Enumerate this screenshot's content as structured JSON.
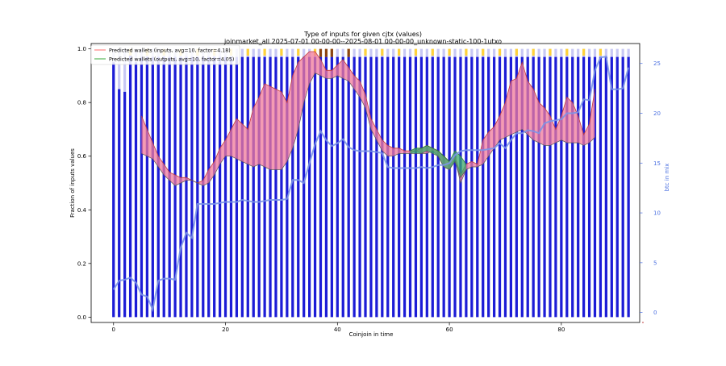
{
  "chart_data": {
    "type": "bar",
    "title": "Type of inputs for given cjtx (values)",
    "subtitle": "joinmarket_all 2025-07-01 00-00-00--2025-08-01 00-00-00_unknown-static-100-1utxo",
    "xlabel": "Coinjoin in time",
    "ylabel": "Fraction of inputs values",
    "y2label": "btc in mix",
    "xlim": [
      -4,
      94
    ],
    "ylim": [
      -0.02,
      1.02
    ],
    "y2lim": [
      -1,
      27
    ],
    "xticks": [
      "0",
      "20",
      "40",
      "60",
      "80"
    ],
    "xtick_values": [
      0,
      20,
      40,
      60,
      80
    ],
    "yticks": [
      "0.0",
      "0.2",
      "0.4",
      "0.6",
      "0.8",
      "1.0"
    ],
    "ytick_values": [
      0,
      0.2,
      0.4,
      0.6,
      0.8,
      1.0
    ],
    "y2ticks": [
      "0",
      "5",
      "10",
      "15",
      "20",
      "25"
    ],
    "y2tick_values": [
      0,
      5,
      10,
      15,
      20,
      25
    ],
    "grid": false,
    "legend_position": "top-left",
    "legend": [
      {
        "label": "Predicted wallets (inputs, avg=10, factor=4.18)",
        "color": "#ff6b6b"
      },
      {
        "label": "Predicted wallets (outputs, avg=10, factor=4.05)",
        "color": "#3aaa3a"
      }
    ],
    "colors": {
      "bars_dark": "#1c1cd6",
      "bars_light": "#c8c8f4",
      "bars_yellow": "#ffd23a",
      "bars_brown": "#8b4513",
      "inputs_fill": "#f07a9a",
      "inputs_line": "#c23b3b",
      "outputs_fill": "#3aaa6a",
      "btc_line": "#7b95e8",
      "right_axis": "#4a6fe0"
    },
    "bars_x_range": [
      0,
      92
    ],
    "bar_dark_fraction": [
      0.95,
      0.85,
      0.84,
      0.98,
      0.95,
      0.97,
      0.97,
      0.97,
      0.97,
      0.97,
      0.97,
      0.97,
      0.97,
      0.97,
      0.97,
      0.97,
      0.97,
      0.97,
      0.97,
      0.97,
      0.97,
      0.97,
      0.97,
      0.97,
      0.97,
      0.97,
      0.97,
      0.97,
      0.97,
      0.97,
      0.97,
      0.97,
      0.97,
      0.97,
      0.97,
      0.97,
      0.97,
      0.97,
      0.97,
      0.97,
      0.97,
      0.97,
      0.97,
      0.97,
      0.97,
      0.97,
      0.97,
      0.97,
      0.97,
      0.97,
      0.97,
      0.97,
      0.97,
      0.97,
      0.97,
      0.97,
      0.97,
      0.97,
      0.97,
      0.97,
      0.97,
      0.97,
      0.97,
      0.97,
      0.97,
      0.97,
      0.97,
      0.97,
      0.97,
      0.97,
      0.97,
      0.97,
      0.97,
      0.97,
      0.97,
      0.97,
      0.97,
      0.97,
      0.97,
      0.97,
      0.97,
      0.97,
      0.97,
      0.97,
      0.97,
      0.97,
      0.97,
      0.97,
      0.97,
      0.97,
      0.97,
      0.97,
      0.97
    ],
    "series": [
      {
        "name": "Predicted wallets (inputs, avg=10, factor=4.18)",
        "x": [
          5,
          6,
          7,
          8,
          9,
          10,
          11,
          12,
          13,
          14,
          15,
          16,
          17,
          18,
          19,
          20,
          21,
          22,
          23,
          24,
          25,
          26,
          27,
          28,
          29,
          30,
          31,
          32,
          33,
          34,
          35,
          36,
          37,
          38,
          39,
          40,
          41,
          42,
          43,
          44,
          45,
          46,
          47,
          48,
          49,
          50,
          51,
          52,
          53,
          54,
          55,
          56,
          57,
          58,
          59,
          60,
          61,
          62,
          63,
          64,
          65,
          66,
          67,
          68,
          69,
          70,
          71,
          72,
          73,
          74,
          75,
          76,
          77,
          78,
          79,
          80,
          81,
          82,
          83,
          84,
          85,
          86
        ],
        "upper": [
          0.75,
          0.7,
          0.65,
          0.6,
          0.57,
          0.54,
          0.53,
          0.52,
          0.52,
          0.51,
          0.5,
          0.51,
          0.55,
          0.58,
          0.63,
          0.66,
          0.7,
          0.74,
          0.72,
          0.7,
          0.78,
          0.82,
          0.87,
          0.86,
          0.85,
          0.84,
          0.8,
          0.9,
          0.95,
          0.97,
          0.99,
          0.99,
          0.96,
          0.92,
          0.92,
          0.94,
          0.96,
          0.93,
          0.9,
          0.88,
          0.83,
          0.74,
          0.7,
          0.66,
          0.64,
          0.63,
          0.63,
          0.62,
          0.62,
          0.62,
          0.63,
          0.64,
          0.63,
          0.62,
          0.6,
          0.58,
          0.6,
          0.53,
          0.57,
          0.58,
          0.57,
          0.66,
          0.69,
          0.71,
          0.75,
          0.8,
          0.88,
          0.89,
          0.95,
          0.88,
          0.85,
          0.8,
          0.78,
          0.75,
          0.7,
          0.75,
          0.82,
          0.8,
          0.75,
          0.68,
          0.72,
          0.85
        ],
        "lower": [
          0.61,
          0.6,
          0.59,
          0.56,
          0.53,
          0.51,
          0.49,
          0.5,
          0.51,
          0.51,
          0.5,
          0.49,
          0.5,
          0.53,
          0.57,
          0.6,
          0.6,
          0.59,
          0.58,
          0.57,
          0.56,
          0.57,
          0.56,
          0.55,
          0.55,
          0.55,
          0.58,
          0.63,
          0.7,
          0.8,
          0.87,
          0.91,
          0.9,
          0.89,
          0.89,
          0.9,
          0.89,
          0.88,
          0.85,
          0.82,
          0.78,
          0.7,
          0.66,
          0.62,
          0.6,
          0.6,
          0.61,
          0.61,
          0.61,
          0.62,
          0.61,
          0.61,
          0.62,
          0.6,
          0.56,
          0.55,
          0.59,
          0.5,
          0.55,
          0.56,
          0.56,
          0.57,
          0.6,
          0.63,
          0.66,
          0.67,
          0.68,
          0.69,
          0.7,
          0.68,
          0.66,
          0.65,
          0.64,
          0.64,
          0.65,
          0.66,
          0.65,
          0.65,
          0.65,
          0.64,
          0.65,
          0.67
        ]
      },
      {
        "name": "Predicted wallets (outputs, avg=10, factor=4.05)",
        "x": [
          53,
          54,
          55,
          56,
          57,
          58,
          59,
          60,
          61,
          62,
          63
        ],
        "upper": [
          0.62,
          0.63,
          0.63,
          0.64,
          0.63,
          0.62,
          0.6,
          0.58,
          0.62,
          0.6,
          0.57
        ],
        "lower": [
          0.61,
          0.61,
          0.61,
          0.62,
          0.61,
          0.6,
          0.56,
          0.55,
          0.58,
          0.52,
          0.55
        ]
      },
      {
        "name": "btc in mix",
        "axis": "right",
        "x": [
          0,
          1,
          2,
          3,
          4,
          5,
          6,
          7,
          8,
          9,
          10,
          11,
          12,
          13,
          14,
          15,
          16,
          17,
          18,
          19,
          20,
          21,
          22,
          23,
          24,
          25,
          26,
          27,
          28,
          29,
          30,
          31,
          32,
          33,
          34,
          35,
          36,
          37,
          38,
          39,
          40,
          41,
          42,
          43,
          44,
          45,
          46,
          47,
          48,
          49,
          50,
          51,
          52,
          53,
          54,
          55,
          56,
          57,
          58,
          59,
          60,
          61,
          62,
          63,
          64,
          65,
          66,
          67,
          68,
          69,
          70,
          71,
          72,
          73,
          74,
          75,
          76,
          77,
          78,
          79,
          80,
          81,
          82,
          83,
          84,
          85,
          86,
          87,
          88,
          89,
          90,
          91,
          92
        ],
        "values": [
          2.3,
          3.2,
          3.3,
          3.5,
          3.0,
          1.8,
          1.6,
          0.3,
          3.2,
          3.4,
          3.4,
          3.3,
          6.5,
          8.0,
          7.5,
          10.9,
          10.9,
          10.9,
          10.9,
          11.0,
          11.1,
          11.1,
          11.1,
          11.3,
          11.2,
          11.1,
          11.1,
          11.2,
          11.3,
          11.3,
          11.3,
          11.4,
          13.3,
          13.3,
          13.0,
          15.0,
          16.9,
          18.2,
          17.3,
          16.7,
          17.0,
          17.4,
          16.6,
          16.3,
          16.2,
          16.2,
          16.2,
          16.1,
          16.0,
          14.6,
          14.5,
          14.5,
          14.5,
          14.5,
          14.5,
          14.6,
          14.5,
          14.6,
          14.8,
          14.8,
          15.0,
          15.8,
          16.2,
          16.3,
          16.3,
          16.3,
          16.3,
          16.4,
          16.5,
          17.0,
          16.5,
          17.3,
          18.0,
          18.0,
          18.3,
          18.2,
          18.0,
          19.0,
          19.2,
          19.3,
          19.4,
          20.0,
          20.0,
          20.1,
          21.4,
          21.3,
          24.3,
          25.6,
          25.7,
          22.4,
          22.4,
          22.5,
          24.6
        ]
      }
    ]
  }
}
